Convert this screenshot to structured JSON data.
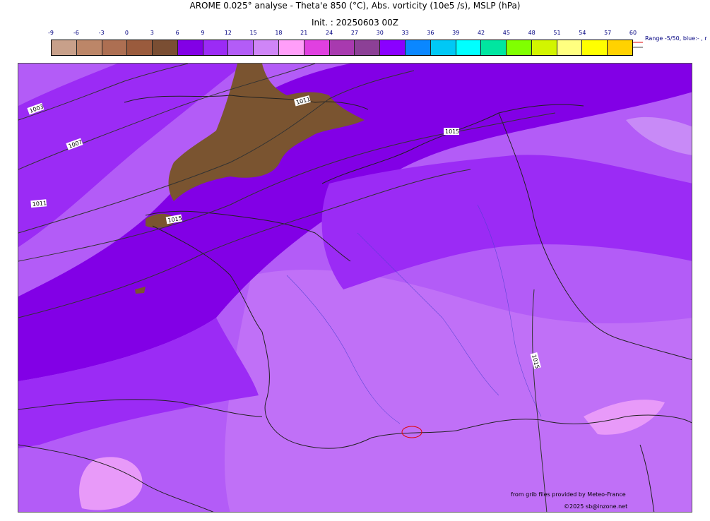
{
  "header": {
    "title": "AROME 0.025° analyse - Theta'e 850 (°C), Abs. vorticity (10e5 /s), MSLP (hPa)",
    "init": "Init. : 20250603 00Z"
  },
  "colorbar": {
    "ticks": [
      "-9",
      "-6",
      "-3",
      "0",
      "3",
      "6",
      "9",
      "12",
      "15",
      "18",
      "21",
      "24",
      "27",
      "30",
      "33",
      "36",
      "39",
      "42",
      "45",
      "48",
      "51",
      "54",
      "57",
      "60"
    ],
    "colors": [
      "#c8a08a",
      "#bc8668",
      "#ad6f52",
      "#9a5b3d",
      "#7a4e33",
      "#8200e6",
      "#9b2bf5",
      "#b35cf7",
      "#cf85f7",
      "#ff9ef9",
      "#e040e0",
      "#a83aaf",
      "#8c4096",
      "#8a00ff",
      "#0a87ff",
      "#00c8f5",
      "#00ffff",
      "#00e6a0",
      "#80ff00",
      "#d2f500",
      "#ffff80",
      "#ffff00",
      "#ffd200"
    ],
    "range_note": "Range -5/50, blue:- , r"
  },
  "map": {
    "isobars": [
      "1003",
      "1007",
      "1011",
      "1011",
      "1015",
      "1015",
      "1015"
    ],
    "colors": {
      "deep": "#8200e6",
      "mid": "#9b2bf5",
      "light": "#b35cf7",
      "pale": "#cf85f7",
      "pink": "#ff9ef9",
      "brown": "#7a5430"
    }
  },
  "credits": {
    "source": "from grib files provided by Meteo-France",
    "copyright": "©2025 sb@inzone.net"
  }
}
